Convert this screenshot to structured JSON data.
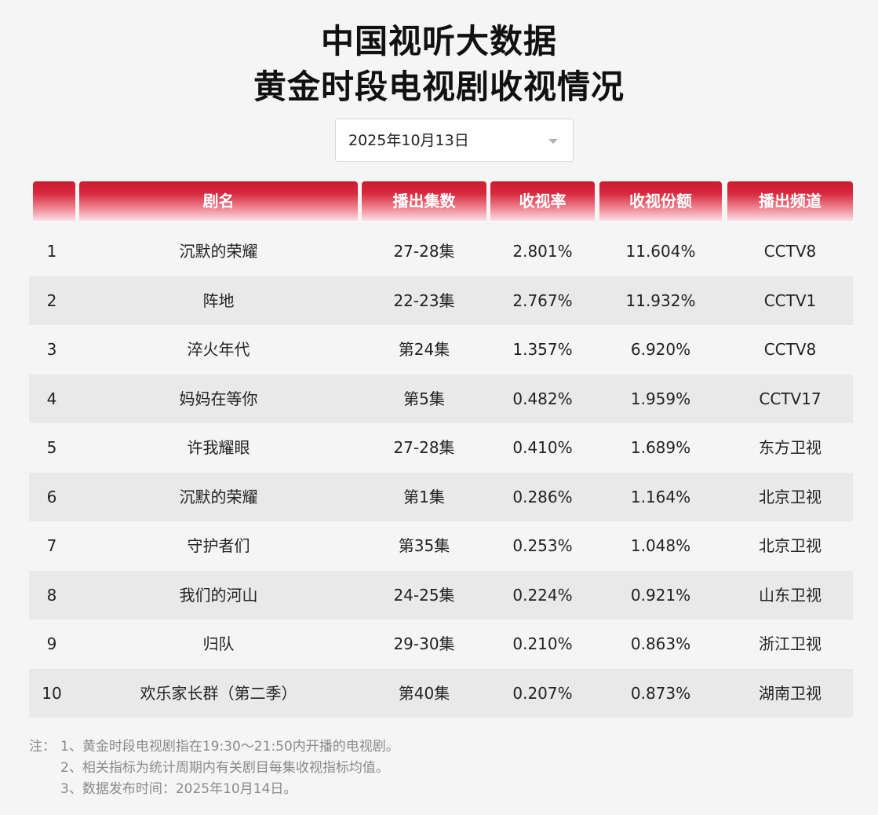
{
  "title": {
    "line1": "中国视听大数据",
    "line2": "黄金时段电视剧收视情况"
  },
  "date_select": {
    "value": "2025年10月13日"
  },
  "table": {
    "headers": [
      "",
      "剧名",
      "播出集数",
      "收视率",
      "收视份额",
      "播出频道"
    ],
    "rows": [
      {
        "rank": "1",
        "name": "沉默的荣耀",
        "episodes": "27-28集",
        "rating": "2.801%",
        "share": "11.604%",
        "channel": "CCTV8"
      },
      {
        "rank": "2",
        "name": "阵地",
        "episodes": "22-23集",
        "rating": "2.767%",
        "share": "11.932%",
        "channel": "CCTV1"
      },
      {
        "rank": "3",
        "name": "淬火年代",
        "episodes": "第24集",
        "rating": "1.357%",
        "share": "6.920%",
        "channel": "CCTV8"
      },
      {
        "rank": "4",
        "name": "妈妈在等你",
        "episodes": "第5集",
        "rating": "0.482%",
        "share": "1.959%",
        "channel": "CCTV17"
      },
      {
        "rank": "5",
        "name": "许我耀眼",
        "episodes": "27-28集",
        "rating": "0.410%",
        "share": "1.689%",
        "channel": "东方卫视"
      },
      {
        "rank": "6",
        "name": "沉默的荣耀",
        "episodes": "第1集",
        "rating": "0.286%",
        "share": "1.164%",
        "channel": "北京卫视"
      },
      {
        "rank": "7",
        "name": "守护者们",
        "episodes": "第35集",
        "rating": "0.253%",
        "share": "1.048%",
        "channel": "北京卫视"
      },
      {
        "rank": "8",
        "name": "我们的河山",
        "episodes": "24-25集",
        "rating": "0.224%",
        "share": "0.921%",
        "channel": "山东卫视"
      },
      {
        "rank": "9",
        "name": "归队",
        "episodes": "29-30集",
        "rating": "0.210%",
        "share": "0.863%",
        "channel": "浙江卫视"
      },
      {
        "rank": "10",
        "name": "欢乐家长群（第二季）",
        "episodes": "第40集",
        "rating": "0.207%",
        "share": "0.873%",
        "channel": "湖南卫视"
      }
    ]
  },
  "notes": {
    "prefix": "注：",
    "lines": [
      "1、黄金时段电视剧指在19:30～21:50内开播的电视剧。",
      "2、相关指标为统计周期内有关剧目每集收视指标均值。",
      "3、数据发布时间：2025年10月14日。"
    ]
  },
  "colors": {
    "header_red": "#cc1c30",
    "row_alt": "#e9e9e9",
    "background": "#f5f5f5",
    "note_gray": "#8a8a8a"
  }
}
